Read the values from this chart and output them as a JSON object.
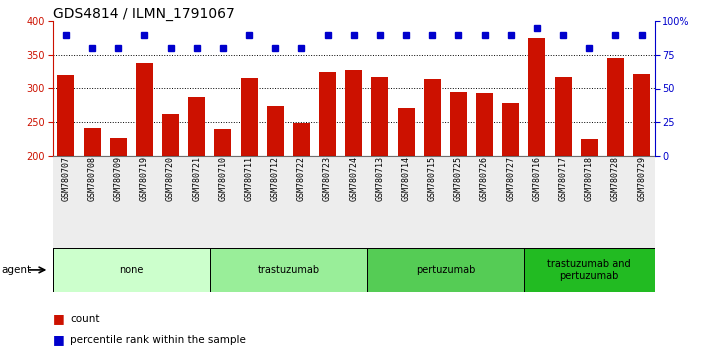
{
  "title": "GDS4814 / ILMN_1791067",
  "samples": [
    "GSM780707",
    "GSM780708",
    "GSM780709",
    "GSM780719",
    "GSM780720",
    "GSM780721",
    "GSM780710",
    "GSM780711",
    "GSM780712",
    "GSM780722",
    "GSM780723",
    "GSM780724",
    "GSM780713",
    "GSM780714",
    "GSM780715",
    "GSM780725",
    "GSM780726",
    "GSM780727",
    "GSM780716",
    "GSM780717",
    "GSM780718",
    "GSM780728",
    "GSM780729"
  ],
  "bar_values": [
    320,
    242,
    227,
    338,
    262,
    287,
    240,
    316,
    274,
    248,
    324,
    328,
    317,
    271,
    314,
    295,
    294,
    278,
    375,
    317,
    225,
    345,
    321
  ],
  "percentile_values": [
    90,
    80,
    80,
    90,
    80,
    80,
    80,
    90,
    80,
    80,
    90,
    90,
    90,
    90,
    90,
    90,
    90,
    90,
    95,
    90,
    80,
    90,
    90
  ],
  "groups": [
    {
      "label": "none",
      "start": 0,
      "end": 6,
      "color": "#ccffcc"
    },
    {
      "label": "trastuzumab",
      "start": 6,
      "end": 12,
      "color": "#99ee99"
    },
    {
      "label": "pertuzumab",
      "start": 12,
      "end": 18,
      "color": "#55cc55"
    },
    {
      "label": "trastuzumab and\npertuzumab",
      "start": 18,
      "end": 23,
      "color": "#22bb22"
    }
  ],
  "bar_color": "#cc1100",
  "dot_color": "#0000cc",
  "ylim_left": [
    200,
    400
  ],
  "ylim_right": [
    0,
    100
  ],
  "yticks_left": [
    200,
    250,
    300,
    350,
    400
  ],
  "yticks_right": [
    0,
    25,
    50,
    75,
    100
  ],
  "agent_label": "agent",
  "legend_count": "count",
  "legend_percentile": "percentile rank within the sample",
  "title_fontsize": 10,
  "tick_fontsize": 7,
  "group_fontsize": 7,
  "xtick_fontsize": 6
}
